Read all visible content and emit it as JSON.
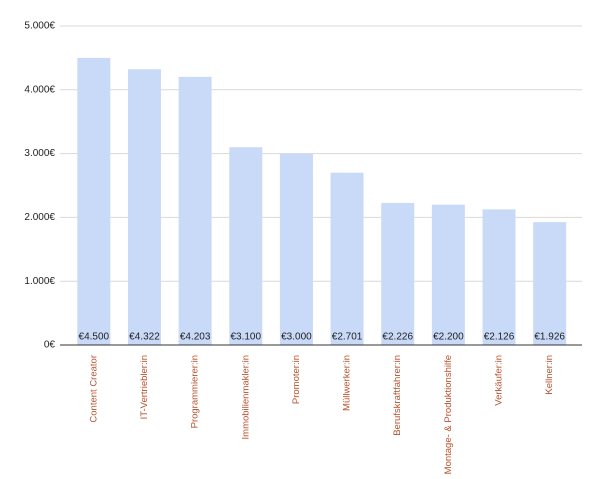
{
  "chart_data": {
    "type": "bar",
    "categories": [
      "Content Creator",
      "IT-Vertriebler:in",
      "Programmierer:in",
      "Immobilienmakler:in",
      "Promoter:in",
      "Müllwerker:in",
      "Berufskraftfahrer:in",
      "Montage- & Produktionshilfe",
      "Verkäufer:in",
      "Kellner:in"
    ],
    "values": [
      4500,
      4322,
      4203,
      3100,
      3000,
      2701,
      2226,
      2200,
      2126,
      1926
    ],
    "value_labels": [
      "€4.500",
      "€4.322",
      "€4.203",
      "€3.100",
      "€3.000",
      "€2.701",
      "€2.226",
      "€2.200",
      "€2.126",
      "€1.926"
    ],
    "color": "#c9daf8",
    "ylim": [
      0,
      5000
    ],
    "yticks": [
      {
        "value": 0,
        "label": "0€"
      },
      {
        "value": 1000,
        "label": "1.000€"
      },
      {
        "value": 2000,
        "label": "2.000€"
      },
      {
        "value": 3000,
        "label": "3.000€"
      },
      {
        "value": 4000,
        "label": "4.000€"
      },
      {
        "value": 5000,
        "label": "5.000€"
      }
    ],
    "grid": true
  }
}
